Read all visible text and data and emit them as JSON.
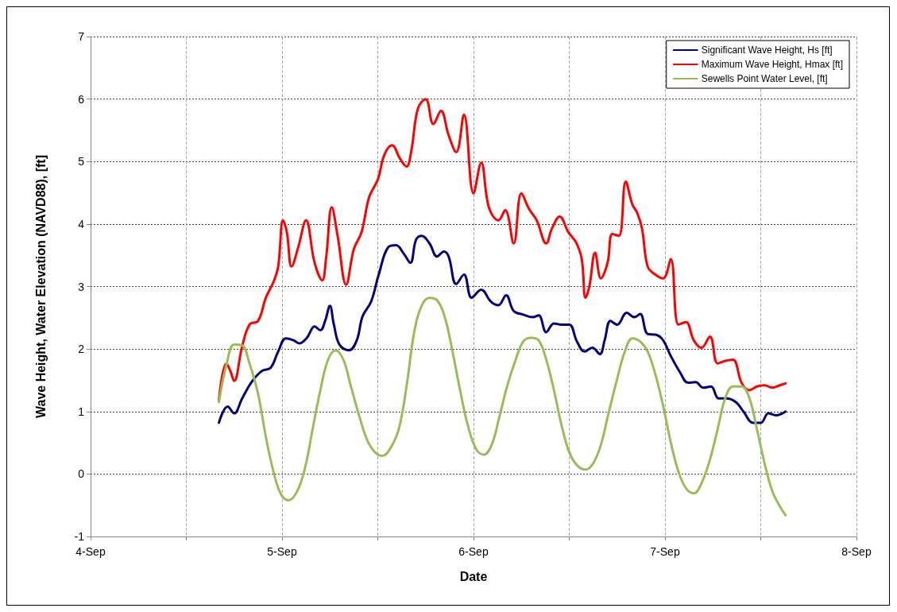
{
  "chart_data": {
    "type": "line",
    "xlabel": "Date",
    "ylabel": "Wave Height, Water Elevation (NAVD88), [ft]",
    "xlim": [
      "--09-04",
      "--09-08"
    ],
    "xticks": [
      {
        "value": "--09-04",
        "label": "4-Sep"
      },
      {
        "value": "--09-04T12:00",
        "label": null
      },
      {
        "value": "--09-05",
        "label": "5-Sep"
      },
      {
        "value": "--09-05T12:00",
        "label": null
      },
      {
        "value": "--09-06",
        "label": "6-Sep"
      },
      {
        "value": "--09-06T12:00",
        "label": null
      },
      {
        "value": "--09-07",
        "label": "7-Sep"
      },
      {
        "value": "--09-07T12:00",
        "label": null
      },
      {
        "value": "--09-08",
        "label": "8-Sep"
      }
    ],
    "ylim": [
      -1,
      7
    ],
    "yticks": [
      -1,
      0,
      1,
      2,
      3,
      4,
      5,
      6,
      7
    ],
    "grid": true,
    "legend": "top right",
    "marker": "none",
    "line_style": "solid",
    "series": [
      {
        "name": "Significant Wave Height, Hs [ft]",
        "color": "#000080",
        "x": [
          "--09-04T16:05",
          "--09-04T17:11",
          "--09-04T18:00",
          "--09-04T18:58",
          "--09-04T20:10",
          "--09-04T21:29",
          "--09-04T22:34",
          "--09-04T23:31",
          "--09-05T00:29",
          "--09-05T01:26",
          "--09-05T02:10",
          "--09-05T03:07",
          "--09-05T04:05",
          "--09-05T04:48",
          "--09-05T05:24",
          "--09-05T06:00",
          "--09-05T06:29",
          "--09-05T07:12",
          "--09-05T08:24",
          "--09-05T09:22",
          "--09-05T10:05",
          "--09-05T11:10",
          "--09-05T12:07",
          "--09-05T13:19",
          "--09-05T14:17",
          "--09-05T15:14",
          "--09-05T16:05",
          "--09-05T16:48",
          "--09-05T17:31",
          "--09-05T18:29",
          "--09-05T19:26",
          "--09-05T20:17",
          "--09-05T20:53",
          "--09-05T21:50",
          "--09-05T22:48",
          "--09-05T23:46",
          "--09-06T00:58",
          "--09-06T02:10",
          "--09-06T03:07",
          "--09-06T04:05",
          "--09-06T05:02",
          "--09-06T06:14",
          "--09-06T07:26",
          "--09-06T08:10",
          "--09-06T09:07",
          "--09-06T10:05",
          "--09-06T11:02",
          "--09-06T12:00",
          "--09-06T12:58",
          "--09-06T13:55",
          "--09-06T14:53",
          "--09-06T15:50",
          "--09-06T16:26",
          "--09-06T17:10",
          "--09-06T18:00",
          "--09-06T19:12",
          "--09-06T20:10",
          "--09-06T20:53",
          "--09-06T21:50",
          "--09-06T22:48",
          "--09-06T23:46",
          "--09-07T00:43",
          "--09-07T01:55",
          "--09-07T02:53",
          "--09-07T03:50",
          "--09-07T04:48",
          "--09-07T05:46",
          "--09-07T06:43",
          "--09-07T07:41",
          "--09-07T08:53",
          "--09-07T09:50",
          "--09-07T11:02",
          "--09-07T12:00",
          "--09-07T12:58",
          "--09-07T13:55",
          "--09-07T15:07"
        ],
        "values": [
          0.82,
          1.08,
          0.97,
          1.2,
          1.47,
          1.65,
          1.7,
          1.96,
          2.17,
          2.14,
          2.09,
          2.18,
          2.36,
          2.3,
          2.45,
          2.69,
          2.4,
          2.07,
          1.98,
          2.14,
          2.52,
          2.76,
          3.19,
          3.63,
          3.66,
          3.53,
          3.38,
          3.75,
          3.81,
          3.69,
          3.48,
          3.56,
          3.48,
          3.04,
          3.19,
          2.82,
          2.95,
          2.76,
          2.7,
          2.86,
          2.61,
          2.55,
          2.51,
          2.54,
          2.27,
          2.41,
          2.39,
          2.39,
          2.12,
          1.96,
          2.02,
          1.92,
          2.14,
          2.45,
          2.39,
          2.58,
          2.51,
          2.56,
          2.24,
          2.23,
          2.14,
          1.89,
          1.62,
          1.46,
          1.47,
          1.38,
          1.4,
          1.21,
          1.21,
          1.15,
          1.0,
          0.82,
          0.82,
          0.97,
          0.94,
          1.0
        ]
      },
      {
        "name": "Maximum Wave Height, Hmax [ft]",
        "color": "#ff0000",
        "x": [
          "--09-04T16:05",
          "--09-04T17:02",
          "--09-04T17:31",
          "--09-04T18:00",
          "--09-04T18:58",
          "--09-04T19:55",
          "--09-04T21:00",
          "--09-04T21:58",
          "--09-04T22:55",
          "--09-04T23:31",
          "--09-05T00:07",
          "--09-05T00:36",
          "--09-05T01:12",
          "--09-05T02:02",
          "--09-05T03:00",
          "--09-05T04:05",
          "--09-05T05:02",
          "--09-05T05:31",
          "--09-05T06:14",
          "--09-05T06:58",
          "--09-05T08:02",
          "--09-05T09:00",
          "--09-05T09:58",
          "--09-05T10:55",
          "--09-05T12:00",
          "--09-05T12:50",
          "--09-05T13:48",
          "--09-05T14:46",
          "--09-05T15:36",
          "--09-05T16:12",
          "--09-05T17:02",
          "--09-05T18:00",
          "--09-05T18:58",
          "--09-05T19:55",
          "--09-05T20:53",
          "--09-05T21:50",
          "--09-05T22:48",
          "--09-06T00:00",
          "--09-06T00:58",
          "--09-06T01:55",
          "--09-06T03:07",
          "--09-06T03:58",
          "--09-06T05:02",
          "--09-06T06:00",
          "--09-06T06:58",
          "--09-06T07:55",
          "--09-06T09:07",
          "--09-06T09:50",
          "--09-06T10:48",
          "--09-06T11:53",
          "--09-06T12:50",
          "--09-06T13:34",
          "--09-06T14:02",
          "--09-06T14:31",
          "--09-06T15:14",
          "--09-06T15:58",
          "--09-06T16:48",
          "--09-06T17:24",
          "--09-06T18:14",
          "--09-06T19:05",
          "--09-06T19:55",
          "--09-06T20:31",
          "--09-06T21:07",
          "--09-06T21:50",
          "--09-06T22:48",
          "--09-06T23:46",
          "--09-07T00:43",
          "--09-07T01:41",
          "--09-07T02:38",
          "--09-07T03:36",
          "--09-07T04:34",
          "--09-07T05:38",
          "--09-07T06:36",
          "--09-07T07:34",
          "--09-07T08:31",
          "--09-07T09:36",
          "--09-07T10:34",
          "--09-07T11:31",
          "--09-07T12:29",
          "--09-07T13:26",
          "--09-07T14:24",
          "--09-07T15:07"
        ],
        "values": [
          1.18,
          1.77,
          1.65,
          1.49,
          2.02,
          2.39,
          2.45,
          2.82,
          3.07,
          3.32,
          4.06,
          3.87,
          3.32,
          3.63,
          4.06,
          3.38,
          3.1,
          3.45,
          4.27,
          3.81,
          3.03,
          3.6,
          3.87,
          4.43,
          4.71,
          5.11,
          5.26,
          5.05,
          4.92,
          5.17,
          5.85,
          6.0,
          5.6,
          5.81,
          5.42,
          5.15,
          5.75,
          4.49,
          4.98,
          4.27,
          4.06,
          4.22,
          3.69,
          4.49,
          4.24,
          4.06,
          3.69,
          3.93,
          4.12,
          3.87,
          3.71,
          3.44,
          2.82,
          3.0,
          3.54,
          3.13,
          3.38,
          3.84,
          3.81,
          4.68,
          4.31,
          4.18,
          3.93,
          3.32,
          3.19,
          3.13,
          3.44,
          2.39,
          2.43,
          2.14,
          2.02,
          2.2,
          1.77,
          1.81,
          1.83,
          1.46,
          1.34,
          1.4,
          1.42,
          1.38,
          1.42,
          1.45
        ]
      },
      {
        "name": "Sewells Point Water Level, [ft]",
        "color": "#9bbb59",
        "x": [
          "--09-04T16:05",
          "--09-04T17:02",
          "--09-04T18:00",
          "--09-04T18:58",
          "--09-04T19:55",
          "--09-04T21:00",
          "--09-04T21:58",
          "--09-04T22:55",
          "--09-04T23:53",
          "--09-05T00:50",
          "--09-05T01:55",
          "--09-05T02:53",
          "--09-05T03:50",
          "--09-05T04:48",
          "--09-05T05:46",
          "--09-05T06:43",
          "--09-05T07:41",
          "--09-05T08:38",
          "--09-05T09:43",
          "--09-05T10:41",
          "--09-05T11:38",
          "--09-05T12:36",
          "--09-05T13:34",
          "--09-05T14:38",
          "--09-05T15:36",
          "--09-05T16:34",
          "--09-05T17:31",
          "--09-05T18:29",
          "--09-05T19:26",
          "--09-05T20:24",
          "--09-05T21:22",
          "--09-05T22:19",
          "--09-05T23:17",
          "--09-06T00:22",
          "--09-06T01:19",
          "--09-06T02:17",
          "--09-06T03:14",
          "--09-06T04:12",
          "--09-06T05:17",
          "--09-06T06:14",
          "--09-06T07:12",
          "--09-06T08:10",
          "--09-06T09:07",
          "--09-06T10:05",
          "--09-06T11:02",
          "--09-06T12:00",
          "--09-06T12:58",
          "--09-06T14:02",
          "--09-06T15:00",
          "--09-06T15:58",
          "--09-06T16:55",
          "--09-06T18:00",
          "--09-06T18:58",
          "--09-06T19:55",
          "--09-06T20:53",
          "--09-06T21:50",
          "--09-06T22:48",
          "--09-06T23:46",
          "--09-07T00:43",
          "--09-07T01:41",
          "--09-07T02:38",
          "--09-07T03:36",
          "--09-07T04:34",
          "--09-07T05:38",
          "--09-07T06:36",
          "--09-07T07:34",
          "--09-07T08:31",
          "--09-07T09:36",
          "--09-07T10:34",
          "--09-07T11:31",
          "--09-07T12:29",
          "--09-07T13:26",
          "--09-07T14:24",
          "--09-07T15:07"
        ],
        "values": [
          1.15,
          1.75,
          2.07,
          2.06,
          1.77,
          1.28,
          0.6,
          0.04,
          -0.33,
          -0.42,
          -0.27,
          0.1,
          0.72,
          1.34,
          1.83,
          1.98,
          1.83,
          1.4,
          0.91,
          0.54,
          0.35,
          0.29,
          0.41,
          0.72,
          1.4,
          2.27,
          2.7,
          2.82,
          2.78,
          2.51,
          1.96,
          1.34,
          0.78,
          0.39,
          0.31,
          0.47,
          0.91,
          1.4,
          1.83,
          2.12,
          2.18,
          2.14,
          1.83,
          1.34,
          0.78,
          0.35,
          0.14,
          0.07,
          0.17,
          0.47,
          0.97,
          1.52,
          1.96,
          2.17,
          2.12,
          1.96,
          1.59,
          1.09,
          0.51,
          0.04,
          -0.23,
          -0.31,
          -0.15,
          0.23,
          0.72,
          1.22,
          1.4,
          1.4,
          1.22,
          0.72,
          0.17,
          -0.27,
          -0.52,
          -0.66
        ]
      }
    ]
  }
}
